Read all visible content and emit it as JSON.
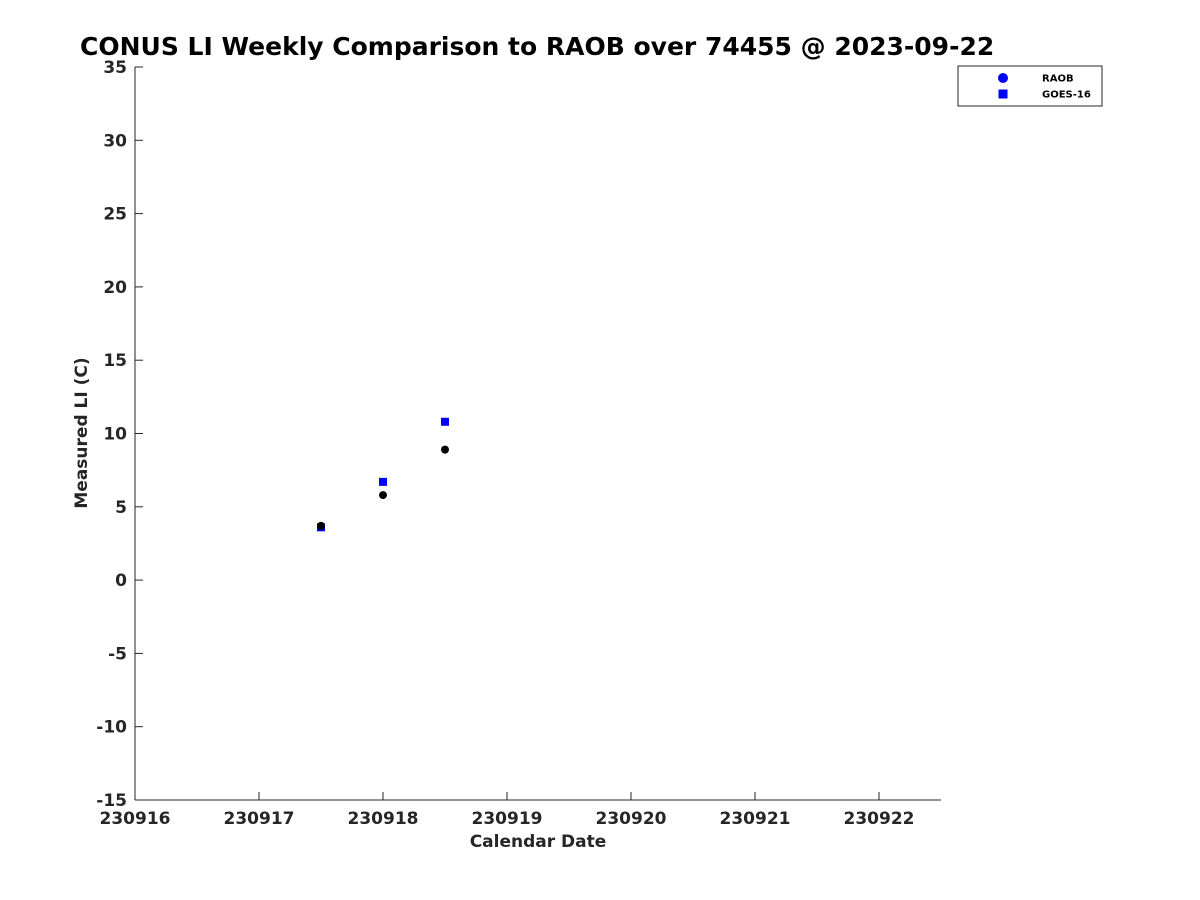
{
  "chart_data": {
    "type": "scatter",
    "title": "CONUS LI Weekly Comparison to RAOB over 74455 @ 2023-09-22",
    "xlabel": "Calendar Date",
    "ylabel": "Measured LI (C)",
    "xlim": [
      230916,
      230922.5
    ],
    "ylim": [
      -15,
      35
    ],
    "xticks": [
      230916,
      230917,
      230918,
      230919,
      230920,
      230921,
      230922
    ],
    "xtick_labels": [
      "230916",
      "230917",
      "230918",
      "230919",
      "230920",
      "230921",
      "230922"
    ],
    "yticks": [
      35,
      30,
      25,
      20,
      15,
      10,
      5,
      0,
      -5,
      -10,
      -15
    ],
    "ytick_labels": [
      "35",
      "30",
      "25",
      "20",
      "15",
      "10",
      "5",
      "0",
      "-5",
      "-10",
      "-15"
    ],
    "grid": false,
    "legend_position": "top-right",
    "series": [
      {
        "name": "RAOB",
        "marker": "circle",
        "legend_color": "#0000ff",
        "point_color": "#000000",
        "x": [
          230917.5,
          230918.0,
          230918.5
        ],
        "y": [
          3.7,
          5.8,
          8.9
        ]
      },
      {
        "name": "GOES-16",
        "marker": "square",
        "legend_color": "#0000ff",
        "point_color": "#0000ff",
        "x": [
          230917.5,
          230918.0,
          230918.5
        ],
        "y": [
          3.6,
          6.7,
          10.8
        ]
      }
    ]
  }
}
